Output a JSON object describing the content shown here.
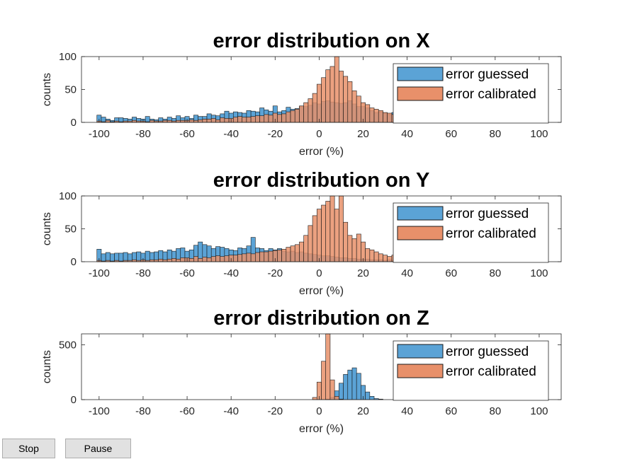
{
  "controls": {
    "stop_label": "Stop",
    "pause_label": "Pause"
  },
  "colors": {
    "guessed": "#5ba3d6",
    "calibrated": "#e8906a",
    "edge": "#1a1a1a",
    "axis": "#262626"
  },
  "chart_data": [
    {
      "type": "bar",
      "title": "error distribution on X",
      "xlabel": "error (%)",
      "ylabel": "counts",
      "xlim": [
        -108,
        110
      ],
      "ylim": [
        0,
        100
      ],
      "yticks": [
        0,
        50,
        100
      ],
      "xticks": [
        -100,
        -80,
        -60,
        -40,
        -20,
        0,
        20,
        40,
        60,
        80,
        100
      ],
      "bin_width": 2,
      "bin_start": -101,
      "legend": "top-right",
      "series": [
        {
          "name": "error guessed",
          "color": "#5ba3d6",
          "values": [
            11,
            8,
            5,
            3,
            7,
            7,
            6,
            5,
            8,
            6,
            5,
            9,
            5,
            4,
            7,
            5,
            8,
            6,
            10,
            7,
            9,
            6,
            11,
            9,
            9,
            13,
            11,
            10,
            13,
            17,
            14,
            16,
            15,
            14,
            18,
            17,
            16,
            22,
            19,
            17,
            25,
            16,
            18,
            23,
            20,
            21,
            24,
            24,
            26,
            30,
            28,
            32,
            33,
            31,
            30,
            29,
            30,
            33,
            28,
            24,
            24,
            22,
            18,
            15,
            16,
            14,
            12,
            15,
            11,
            13,
            11,
            9,
            9,
            12,
            8,
            10,
            7,
            9,
            8,
            9,
            7,
            7,
            8,
            6,
            8,
            7,
            6,
            9,
            5,
            8,
            5,
            6,
            8,
            6,
            6,
            7,
            4,
            7,
            5,
            6
          ]
        },
        {
          "name": "error calibrated",
          "color": "#e8906a",
          "values": [
            2,
            1,
            3,
            1,
            2,
            1,
            2,
            2,
            3,
            2,
            2,
            1,
            3,
            2,
            2,
            3,
            3,
            2,
            3,
            3,
            3,
            4,
            3,
            4,
            5,
            5,
            6,
            4,
            7,
            6,
            6,
            8,
            9,
            8,
            8,
            9,
            10,
            10,
            12,
            11,
            14,
            12,
            13,
            16,
            18,
            20,
            25,
            30,
            36,
            44,
            58,
            68,
            80,
            85,
            100,
            78,
            70,
            62,
            48,
            40,
            30,
            27,
            22,
            20,
            18,
            15,
            14,
            12,
            11,
            8,
            9,
            7,
            6,
            6,
            5,
            4,
            4,
            3,
            3,
            3,
            2,
            2,
            2,
            2,
            1,
            2,
            1,
            1,
            1,
            1,
            1,
            1,
            0,
            1,
            0,
            1,
            0,
            1,
            0,
            0
          ]
        }
      ]
    },
    {
      "type": "bar",
      "title": "error distribution on Y",
      "xlabel": "error (%)",
      "ylabel": "counts",
      "xlim": [
        -108,
        110
      ],
      "ylim": [
        0,
        100
      ],
      "yticks": [
        0,
        50,
        100
      ],
      "xticks": [
        -100,
        -80,
        -60,
        -40,
        -20,
        0,
        20,
        40,
        60,
        80,
        100
      ],
      "bin_width": 2,
      "bin_start": -101,
      "legend": "top-right",
      "series": [
        {
          "name": "error guessed",
          "color": "#5ba3d6",
          "values": [
            19,
            12,
            14,
            12,
            13,
            13,
            14,
            12,
            14,
            15,
            13,
            16,
            14,
            15,
            17,
            15,
            18,
            16,
            20,
            21,
            16,
            18,
            25,
            30,
            26,
            24,
            20,
            23,
            22,
            20,
            18,
            17,
            21,
            20,
            24,
            37,
            21,
            20,
            17,
            20,
            18,
            20,
            16,
            15,
            16,
            14,
            15,
            13,
            12,
            11,
            10,
            9,
            9,
            8,
            7,
            6,
            6,
            5,
            5,
            4,
            4,
            4,
            3,
            3,
            3,
            2,
            3,
            2,
            2,
            2,
            1,
            1,
            1,
            1,
            1,
            0,
            1,
            1,
            1,
            1,
            1,
            1,
            2,
            2,
            2,
            5,
            3,
            4,
            5,
            3,
            4,
            3,
            4,
            3,
            5,
            4,
            6,
            4,
            1,
            1
          ]
        },
        {
          "name": "error calibrated",
          "color": "#e8906a",
          "values": [
            2,
            1,
            2,
            1,
            2,
            1,
            2,
            2,
            3,
            2,
            3,
            2,
            3,
            3,
            4,
            3,
            4,
            5,
            4,
            6,
            6,
            5,
            8,
            5,
            7,
            6,
            8,
            9,
            8,
            9,
            10,
            10,
            11,
            12,
            13,
            12,
            14,
            15,
            15,
            16,
            17,
            18,
            19,
            22,
            24,
            26,
            30,
            40,
            55,
            70,
            80,
            86,
            92,
            100,
            80,
            100,
            60,
            40,
            35,
            42,
            30,
            20,
            18,
            15,
            12,
            10,
            8,
            10,
            8,
            7,
            5,
            6,
            5,
            5,
            4,
            4,
            4,
            4,
            3,
            3,
            3,
            3,
            3,
            3,
            2,
            2,
            2,
            2,
            2,
            2,
            2,
            1,
            1,
            1,
            1,
            1,
            1,
            0,
            0,
            0
          ]
        }
      ]
    },
    {
      "type": "bar",
      "title": "error distribution on Z",
      "xlabel": "error (%)",
      "ylabel": "counts",
      "xlim": [
        -108,
        110
      ],
      "ylim": [
        0,
        600
      ],
      "yticks": [
        0,
        500
      ],
      "xticks": [
        -100,
        -80,
        -60,
        -40,
        -20,
        0,
        20,
        40,
        60,
        80,
        100
      ],
      "bin_width": 2,
      "bin_start": -101,
      "legend": "top-right",
      "series": [
        {
          "name": "error guessed",
          "color": "#5ba3d6",
          "values": [
            0,
            0,
            0,
            0,
            0,
            0,
            0,
            0,
            0,
            0,
            0,
            0,
            0,
            0,
            0,
            0,
            0,
            0,
            0,
            0,
            0,
            0,
            0,
            0,
            0,
            0,
            0,
            0,
            0,
            0,
            0,
            0,
            0,
            0,
            0,
            0,
            0,
            0,
            0,
            0,
            0,
            0,
            0,
            0,
            0,
            0,
            0,
            0,
            0,
            0,
            0,
            0,
            5,
            20,
            80,
            150,
            230,
            270,
            290,
            240,
            130,
            70,
            30,
            10,
            5,
            0,
            0,
            0,
            0,
            0,
            0,
            0,
            0,
            0,
            0,
            0,
            0,
            0,
            0,
            0,
            0,
            0,
            0,
            0,
            0,
            0,
            0,
            0,
            0,
            0,
            0,
            0,
            0,
            0,
            0,
            0,
            0,
            0,
            0,
            0
          ]
        },
        {
          "name": "error calibrated",
          "color": "#e8906a",
          "values": [
            0,
            0,
            0,
            0,
            0,
            0,
            0,
            0,
            0,
            0,
            0,
            0,
            0,
            0,
            0,
            0,
            0,
            0,
            0,
            0,
            0,
            0,
            0,
            0,
            0,
            0,
            0,
            0,
            0,
            0,
            0,
            0,
            0,
            0,
            0,
            0,
            0,
            0,
            0,
            0,
            0,
            0,
            0,
            0,
            0,
            0,
            0,
            0,
            0,
            20,
            160,
            350,
            600,
            180,
            30,
            5,
            0,
            0,
            0,
            0,
            0,
            0,
            0,
            0,
            0,
            0,
            0,
            0,
            0,
            0,
            0,
            0,
            0,
            0,
            0,
            0,
            0,
            0,
            0,
            0,
            0,
            0,
            0,
            0,
            0,
            0,
            0,
            0,
            0,
            0,
            0,
            0,
            0,
            0,
            0,
            0,
            0,
            0,
            0,
            0
          ]
        }
      ]
    }
  ]
}
